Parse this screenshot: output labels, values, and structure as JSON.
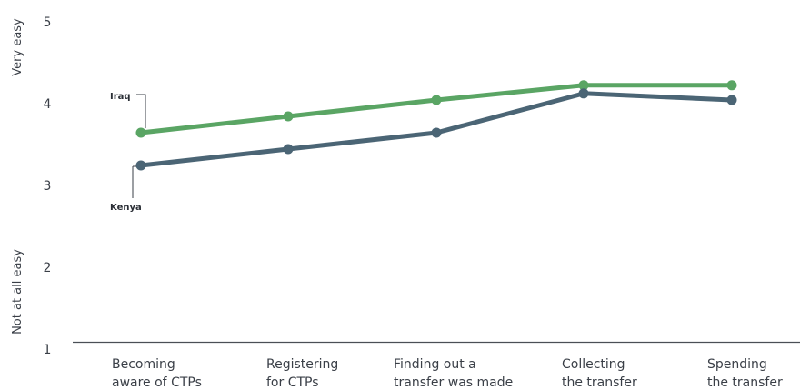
{
  "chart_data": {
    "type": "line",
    "title": "",
    "categories": [
      [
        "Becoming",
        "aware of CTPs"
      ],
      [
        "Registering",
        "for CTPs"
      ],
      [
        "Finding out a",
        "transfer was made"
      ],
      [
        "Collecting",
        "the transfer"
      ],
      [
        "Spending",
        "the transfer"
      ]
    ],
    "ylim": [
      1,
      5
    ],
    "yticks": [
      "1",
      "2",
      "3",
      "4",
      "5"
    ],
    "y_side_labels": {
      "top": "Very easy",
      "bottom": "Not at all easy"
    },
    "grid": false,
    "series": [
      {
        "name": "Iraq",
        "color": "#5aa564",
        "values": [
          3.6,
          3.8,
          4.0,
          4.18,
          4.18
        ]
      },
      {
        "name": "Kenya",
        "color": "#4b6575",
        "values": [
          3.2,
          3.4,
          3.6,
          4.08,
          4.0
        ]
      }
    ]
  }
}
